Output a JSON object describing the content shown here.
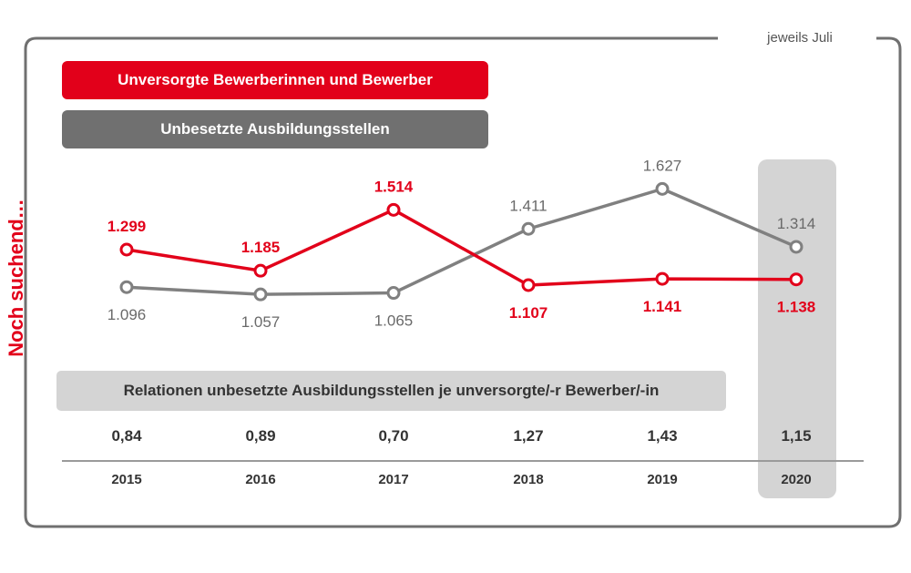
{
  "note": "jeweils Juli",
  "side_title": "Noch suchend…",
  "legend": {
    "red": "Unversorgte Bewerberinnen und Bewerber",
    "gray": "Unbesetzte Ausbildungsstellen"
  },
  "relation_title": "Relationen unbesetzte Ausbildungsstellen je unversorgte/-r Bewerber/-in",
  "colors": {
    "red": "#e2001a",
    "gray": "#808080",
    "highlight": "#d4d4d4",
    "frame": "#707070"
  },
  "chart_data": {
    "type": "line",
    "categories": [
      "2015",
      "2016",
      "2017",
      "2018",
      "2019",
      "2020"
    ],
    "highlight_category": "2020",
    "series": [
      {
        "name": "Unversorgte Bewerberinnen und Bewerber",
        "color": "#e2001a",
        "values": [
          1299,
          1185,
          1514,
          1107,
          1141,
          1138
        ],
        "labels": [
          "1.299",
          "1.185",
          "1.514",
          "1.107",
          "1.141",
          "1.138"
        ],
        "label_pos": [
          "above",
          "above",
          "above",
          "below",
          "below",
          "below"
        ]
      },
      {
        "name": "Unbesetzte Ausbildungsstellen",
        "color": "#808080",
        "values": [
          1096,
          1057,
          1065,
          1411,
          1627,
          1314
        ],
        "labels": [
          "1.096",
          "1.057",
          "1.065",
          "1.411",
          "1.627",
          "1.314"
        ],
        "label_pos": [
          "below",
          "below",
          "below",
          "above",
          "above",
          "above"
        ]
      }
    ],
    "relations": [
      "0,84",
      "0,89",
      "0,70",
      "1,27",
      "1,43",
      "1,15"
    ]
  }
}
